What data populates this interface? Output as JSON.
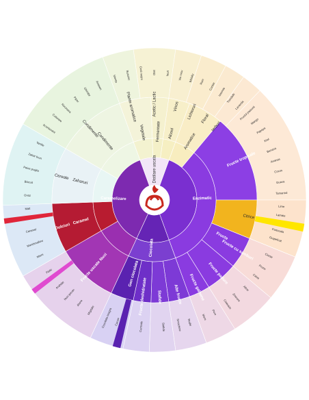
{
  "wheel": {
    "center": {
      "inner": [
        {
          "label": "Distilare uscata",
          "start": 340,
          "end": 20,
          "color": "#f2e6f7"
        },
        {
          "label": "Enzimatic",
          "start": 20,
          "end": 160,
          "color": "#7a2fd0"
        },
        {
          "label": "Ciocolata",
          "start": 160,
          "end": 205,
          "color": "#6524b5"
        },
        {
          "label": "Caramelizare",
          "start": 205,
          "end": 340,
          "color": "#7d2ab0"
        }
      ],
      "middle": [
        {
          "label": "Vegetale",
          "start": 340,
          "end": 358,
          "color": "#f3f2d0"
        },
        {
          "label": "Fermentate",
          "start": 358,
          "end": 8,
          "color": "#f4f0c8"
        },
        {
          "label": "Alcool",
          "start": 8,
          "end": 20,
          "color": "#f6efc2"
        },
        {
          "label": "Aromatice",
          "start": 20,
          "end": 40,
          "color": "#f8edbf"
        },
        {
          "label": "Fructe",
          "start": 40,
          "end": 160,
          "color": "#8a3be0"
        },
        {
          "label": "Gen ciocolata",
          "start": 160,
          "end": 205,
          "color": "#7b3fd0"
        },
        {
          "label": "Nuci",
          "start": 205,
          "end": 240,
          "color": "#9a2fb0"
        },
        {
          "label": "Caramel",
          "start": 240,
          "end": 268,
          "color": "#b81c30"
        },
        {
          "label": "Zaharuri",
          "start": 268,
          "end": 300,
          "color": "#e8f6f4"
        },
        {
          "label": "Condimente",
          "start": 300,
          "end": 340,
          "color": "#eef6e4"
        }
      ],
      "outer": [
        {
          "label": "Vegetale",
          "start": 340,
          "end": 358,
          "color": "#f4f3d9"
        },
        {
          "label": "Fermentate",
          "start": 358,
          "end": 8,
          "color": "#f5f1cf"
        },
        {
          "label": "Alcool",
          "start": 8,
          "end": 20,
          "color": "#f7efc9"
        },
        {
          "label": "Aromatice",
          "start": 20,
          "end": 40,
          "color": "#f9edc6"
        },
        {
          "label": "Fructe tropicale",
          "start": 40,
          "end": 90,
          "color": "#8c3fe4"
        },
        {
          "label": "Citrice",
          "start": 90,
          "end": 112,
          "color": "#f2b41e"
        },
        {
          "label": "Fructe cu samburi",
          "start": 112,
          "end": 130,
          "color": "#8a3be0"
        },
        {
          "label": "Fructe padure",
          "start": 130,
          "end": 148,
          "color": "#8a3be0"
        },
        {
          "label": "Fructe galbene",
          "start": 148,
          "end": 160,
          "color": "#8a3be0"
        },
        {
          "label": "Alte fructe",
          "start": 160,
          "end": 172,
          "color": "#7d3ad6"
        },
        {
          "label": "Stafide",
          "start": 172,
          "end": 182,
          "color": "#7d3ad6"
        },
        {
          "label": "Fructe deshidratate",
          "start": 182,
          "end": 192,
          "color": "#6e2fc8"
        },
        {
          "label": "Ciocolata",
          "start": 192,
          "end": 205,
          "color": "#5a22b0"
        },
        {
          "label": "Fructe uscate",
          "start": 205,
          "end": 240,
          "color": "#a236b4"
        },
        {
          "label": "Dulciuri",
          "start": 240,
          "end": 268,
          "color": "#b51b33"
        },
        {
          "label": "Cereale",
          "start": 268,
          "end": 300,
          "color": "#e9f2f6"
        },
        {
          "label": "Condimente",
          "start": 300,
          "end": 340,
          "color": "#eef5e2"
        }
      ],
      "rim": [
        {
          "label": "Plante aromatice",
          "start": 340,
          "end": 352,
          "color": "#eef4dd"
        },
        {
          "label": "Acetic / Lactic",
          "start": 352,
          "end": 8,
          "color": "#f6f2d4"
        },
        {
          "label": "Vinos",
          "start": 8,
          "end": 18,
          "color": "#f8efd0"
        },
        {
          "label": "Lichioruri",
          "start": 18,
          "end": 28,
          "color": "#faeccd"
        },
        {
          "label": "Floral",
          "start": 28,
          "end": 36,
          "color": "#fbead0"
        },
        {
          "label": "Ierburi",
          "start": 36,
          "end": 44,
          "color": "#fce9d3"
        },
        {
          "label": "Fructe tropicale",
          "start": 44,
          "end": 90,
          "color": "#fde9d6"
        },
        {
          "label": "Citrice",
          "start": 90,
          "end": 112,
          "color": "#fde3cc"
        },
        {
          "label": "Fructe cu samburi",
          "start": 112,
          "end": 130,
          "color": "#f8dcd8"
        },
        {
          "label": "Fructe padure",
          "start": 130,
          "end": 148,
          "color": "#f3d9e0"
        },
        {
          "label": "Fructe galbene",
          "start": 148,
          "end": 160,
          "color": "#eed8e6"
        },
        {
          "label": "Alte fructe",
          "start": 160,
          "end": 172,
          "color": "#e6d6ee"
        },
        {
          "label": "Stafide",
          "start": 172,
          "end": 182,
          "color": "#e1d4f0"
        },
        {
          "label": "Fructe deshidratate",
          "start": 182,
          "end": 192,
          "color": "#dcd2f2"
        },
        {
          "label": "Ciocolata",
          "start": 192,
          "end": 205,
          "color": "#d8d1f3"
        },
        {
          "label": "Nuci",
          "start": 205,
          "end": 240,
          "color": "#e6d2ec"
        },
        {
          "label": "Caramel",
          "start": 240,
          "end": 268,
          "color": "#dce8f6"
        },
        {
          "label": "Zaharuri",
          "start": 268,
          "end": 300,
          "color": "#dff3f3"
        },
        {
          "label": "Condimente",
          "start": 300,
          "end": 340,
          "color": "#e8f4df"
        }
      ],
      "accents": [
        {
          "start": 99,
          "end": 102,
          "color": "#ffe600"
        },
        {
          "start": 193,
          "end": 196,
          "color": "#5a22b0"
        },
        {
          "start": 232,
          "end": 234,
          "color": "#e04ad0"
        },
        {
          "start": 261,
          "end": 263,
          "color": "#e0253a"
        }
      ]
    },
    "logo": {
      "name": "coffee-bean-logo-icon",
      "bg": "#ffffff",
      "color": "#c8281e"
    },
    "labels": {
      "inner": [
        {
          "text": "Distilare uscata",
          "angle": 0,
          "r": 45
        },
        {
          "text": "Enzimatic",
          "angle": 88,
          "r": 70
        },
        {
          "text": "Ciocolata",
          "angle": 184,
          "r": 70
        },
        {
          "text": "Caramelizare",
          "angle": 272,
          "r": 60
        }
      ],
      "middle": [
        {
          "text": "Vegetale",
          "angle": 350,
          "r": 100
        },
        {
          "text": "Fermentate",
          "angle": 3,
          "r": 100
        },
        {
          "text": "Alcool",
          "angle": 14,
          "r": 100
        },
        {
          "text": "Aromatice",
          "angle": 31,
          "r": 100
        },
        {
          "text": "Fructe",
          "angle": 118,
          "r": 112
        },
        {
          "text": "Gen ciocolata",
          "angle": 196,
          "r": 112
        },
        {
          "text": "Nuci",
          "angle": 222,
          "r": 112
        },
        {
          "text": "Caramel",
          "angle": 254,
          "r": 112
        },
        {
          "text": "Zaharuri",
          "angle": 284,
          "r": 112
        },
        {
          "text": "Condimente",
          "angle": 320,
          "r": 112
        }
      ],
      "outer": [
        {
          "text": "Fructe tropicale",
          "angle": 65,
          "r": 140
        },
        {
          "text": "Citrice",
          "angle": 100,
          "r": 140
        },
        {
          "text": "Fructe cu samburi",
          "angle": 121,
          "r": 142
        },
        {
          "text": "Fructe padure",
          "angle": 139,
          "r": 142
        },
        {
          "text": "Fructe galbene",
          "angle": 154,
          "r": 142
        },
        {
          "text": "Alte fructe",
          "angle": 166,
          "r": 142
        },
        {
          "text": "Stafide",
          "angle": 177,
          "r": 142
        },
        {
          "text": "Fructe deshidratate",
          "angle": 187,
          "r": 142
        },
        {
          "text": "Dulciuri",
          "angle": 254,
          "r": 140
        },
        {
          "text": "Fructe uscate",
          "angle": 222,
          "r": 140
        },
        {
          "text": "Cereale",
          "angle": 284,
          "r": 140
        },
        {
          "text": "Condimente",
          "angle": 318,
          "r": 140
        },
        {
          "text": "Plante aromatice",
          "angle": 346,
          "r": 140
        },
        {
          "text": "Acetic / Lactic",
          "angle": 0,
          "r": 140
        },
        {
          "text": "Vinos",
          "angle": 13,
          "r": 140
        },
        {
          "text": "Lichioruri",
          "angle": 23,
          "r": 140
        },
        {
          "text": "Floral",
          "angle": 32,
          "r": 140
        },
        {
          "text": "Ierburi",
          "angle": 40,
          "r": 140
        }
      ]
    },
    "leaves": [
      {
        "angle": 47,
        "text": "Fructul pasiunii"
      },
      {
        "angle": 52,
        "text": "Mango"
      },
      {
        "angle": 57,
        "text": "Papaya"
      },
      {
        "angle": 62,
        "text": "Kiwi"
      },
      {
        "angle": 67,
        "text": "Banana"
      },
      {
        "angle": 72,
        "text": "Ananas"
      },
      {
        "angle": 77,
        "text": "Cocos"
      },
      {
        "angle": 82,
        "text": "Guava"
      },
      {
        "angle": 87,
        "text": "Tamarind"
      },
      {
        "angle": 93,
        "text": "Lime"
      },
      {
        "angle": 97,
        "text": "Lamaie"
      },
      {
        "angle": 104,
        "text": "Portocala"
      },
      {
        "angle": 108,
        "text": "Grapefruit"
      },
      {
        "angle": 116,
        "text": "Cirese"
      },
      {
        "angle": 122,
        "text": "Prune"
      },
      {
        "angle": 127,
        "text": "Caise"
      },
      {
        "angle": 134,
        "text": "Afine"
      },
      {
        "angle": 140,
        "text": "Zmeura"
      },
      {
        "angle": 145,
        "text": "Coacaze"
      },
      {
        "angle": 152,
        "text": "Pere"
      },
      {
        "angle": 157,
        "text": "Mere"
      },
      {
        "angle": 164,
        "text": "Rodie"
      },
      {
        "angle": 169,
        "text": "Smochine"
      },
      {
        "angle": 176,
        "text": "Stafide"
      },
      {
        "angle": 186,
        "text": "Curmale"
      },
      {
        "angle": 197,
        "text": "Cacao"
      },
      {
        "angle": 202,
        "text": "Ciocolata neagra"
      },
      {
        "angle": 210,
        "text": "Migdale"
      },
      {
        "angle": 216,
        "text": "Alune"
      },
      {
        "angle": 222,
        "text": "Nuci pecan"
      },
      {
        "angle": 228,
        "text": "Arahide"
      },
      {
        "angle": 236,
        "text": "Fistic"
      },
      {
        "angle": 244,
        "text": "Miere"
      },
      {
        "angle": 250,
        "text": "Marshmallow"
      },
      {
        "angle": 256,
        "text": "Caramel"
      },
      {
        "angle": 266,
        "text": "Malt"
      },
      {
        "angle": 272,
        "text": "Ovaz"
      },
      {
        "angle": 278,
        "text": "Biscuit"
      },
      {
        "angle": 284,
        "text": "Paine prajita"
      },
      {
        "angle": 290,
        "text": "Zahar brun"
      },
      {
        "angle": 296,
        "text": "Vanilie"
      },
      {
        "angle": 304,
        "text": "Scortisoara"
      },
      {
        "angle": 310,
        "text": "Cuisoare"
      },
      {
        "angle": 316,
        "text": "Nucsoara"
      },
      {
        "angle": 322,
        "text": "Piper"
      },
      {
        "angle": 328,
        "text": "Ghimbir"
      },
      {
        "angle": 334,
        "text": "Anason"
      },
      {
        "angle": 342,
        "text": "Menta"
      },
      {
        "angle": 348,
        "text": "Busuioc"
      },
      {
        "angle": 354,
        "text": "Ceai negru"
      },
      {
        "angle": 0,
        "text": "Otet"
      },
      {
        "angle": 6,
        "text": "Iaurt"
      },
      {
        "angle": 12,
        "text": "Vin rosu"
      },
      {
        "angle": 17,
        "text": "Whisky"
      },
      {
        "angle": 22,
        "text": "Rom"
      },
      {
        "angle": 27,
        "text": "Coniac"
      },
      {
        "angle": 32,
        "text": "Iasomie"
      },
      {
        "angle": 37,
        "text": "Trandafir"
      },
      {
        "angle": 42,
        "text": "Lavanda"
      }
    ]
  }
}
